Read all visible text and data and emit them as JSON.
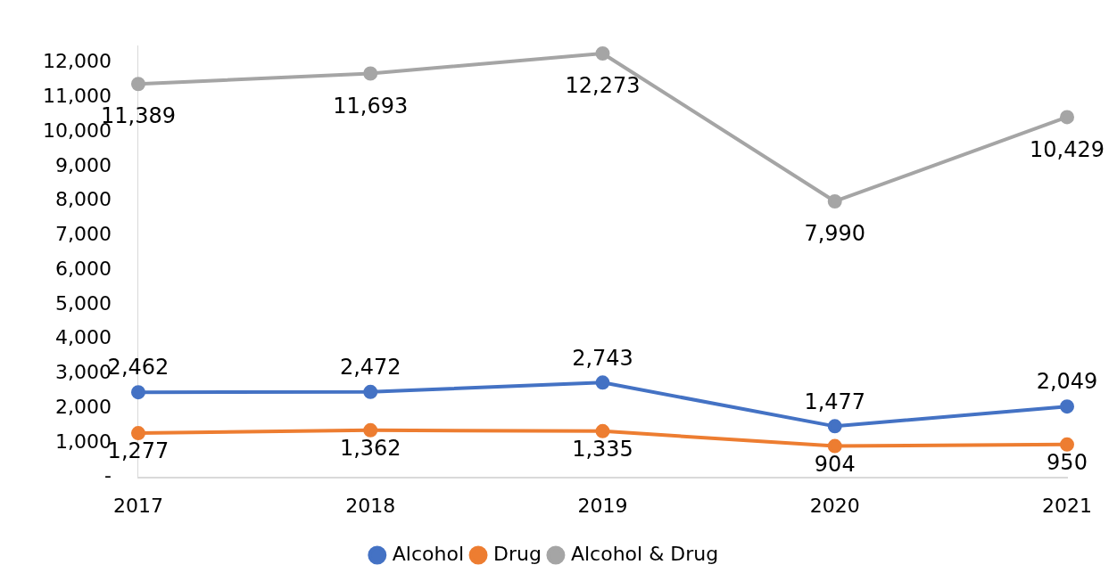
{
  "chart_data": {
    "type": "line",
    "categories": [
      "2017",
      "2018",
      "2019",
      "2020",
      "2021"
    ],
    "series": [
      {
        "name": "Alcohol",
        "color": "#4472c4",
        "values": [
          2462,
          2472,
          2743,
          1477,
          2049
        ],
        "value_labels": [
          "2,462",
          "2,472",
          "2,743",
          "1,477",
          "2,049"
        ]
      },
      {
        "name": "Drug",
        "color": "#ed7d31",
        "values": [
          1277,
          1362,
          1335,
          904,
          950
        ],
        "value_labels": [
          "1,277",
          "1,362",
          "1,335",
          "904",
          "950"
        ]
      },
      {
        "name": "Alcohol & Drug",
        "color": "#a5a5a5",
        "values": [
          11389,
          11693,
          12273,
          7990,
          10429
        ],
        "value_labels": [
          "11,389",
          "11,693",
          "12,273",
          "7,990",
          "10,429"
        ]
      }
    ],
    "ylim": [
      0,
      12500
    ],
    "yticks": [
      {
        "value": 0,
        "label": "-"
      },
      {
        "value": 1000,
        "label": "1,000"
      },
      {
        "value": 2000,
        "label": "2,000"
      },
      {
        "value": 3000,
        "label": "3,000"
      },
      {
        "value": 4000,
        "label": "4,000"
      },
      {
        "value": 5000,
        "label": "5,000"
      },
      {
        "value": 6000,
        "label": "6,000"
      },
      {
        "value": 7000,
        "label": "7,000"
      },
      {
        "value": 8000,
        "label": "8,000"
      },
      {
        "value": 9000,
        "label": "9,000"
      },
      {
        "value": 10000,
        "label": "10,000"
      },
      {
        "value": 11000,
        "label": "11,000"
      },
      {
        "value": 12000,
        "label": "12,000"
      }
    ],
    "grid": false,
    "legend": "bottom",
    "marker": "circle",
    "line_style": "solid"
  }
}
